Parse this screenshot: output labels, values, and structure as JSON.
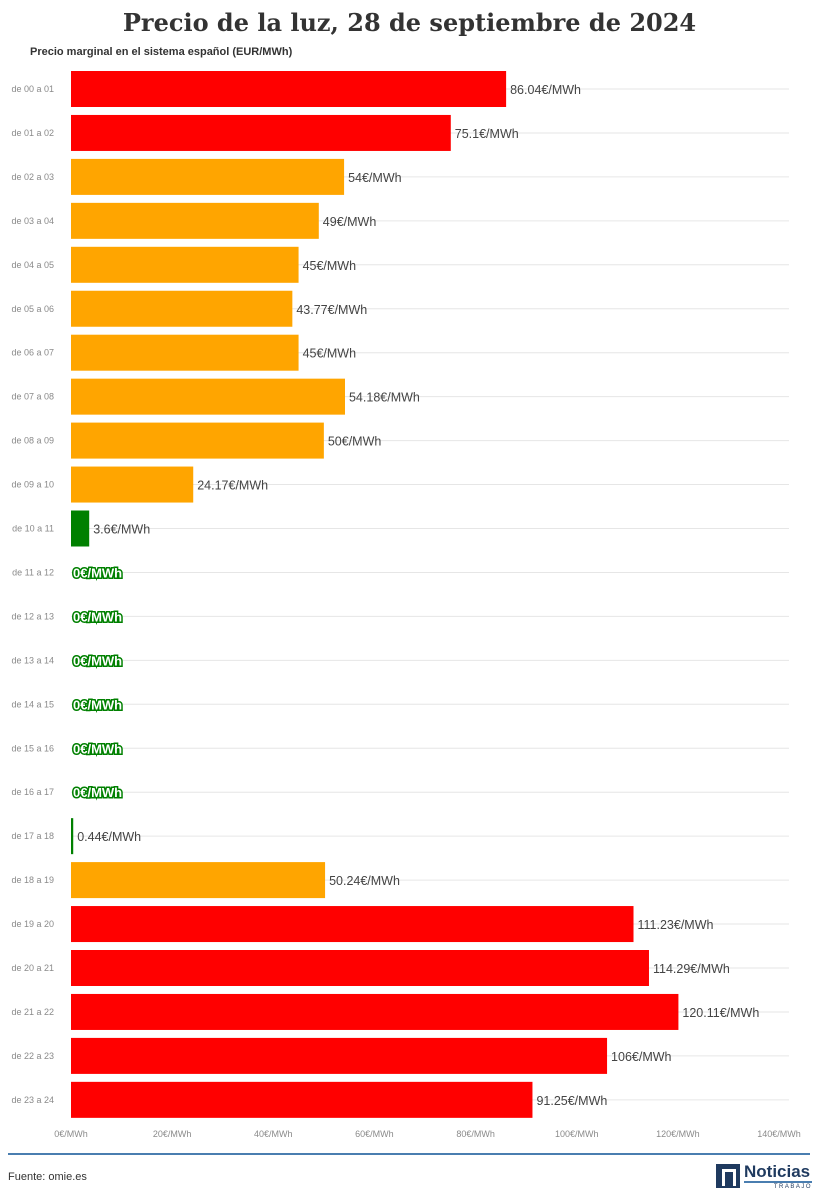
{
  "chart_data": {
    "type": "bar",
    "orientation": "horizontal",
    "title": "Precio de la luz, 28 de septiembre de 2024",
    "subtitle": "Precio marginal en el sistema español (EUR/MWh)",
    "categories": [
      "de 00 a 01",
      "de 01 a 02",
      "de 02 a 03",
      "de 03 a 04",
      "de 04 a 05",
      "de 05 a 06",
      "de 06 a 07",
      "de 07 a 08",
      "de 08 a 09",
      "de 09 a 10",
      "de 10 a 11",
      "de 11 a 12",
      "de 12 a 13",
      "de 13 a 14",
      "de 14 a 15",
      "de 15 a 16",
      "de 16 a 17",
      "de 17 a 18",
      "de 18 a 19",
      "de 19 a 20",
      "de 20 a 21",
      "de 21 a 22",
      "de 22 a 23",
      "de 23 a 24"
    ],
    "values": [
      86.04,
      75.1,
      54,
      49,
      45,
      43.77,
      45,
      54.18,
      50,
      24.17,
      3.6,
      0,
      0,
      0,
      0,
      0,
      0,
      0.44,
      50.24,
      111.23,
      114.29,
      120.11,
      106,
      91.25
    ],
    "value_labels": [
      "86.04€/MWh",
      "75.1€/MWh",
      "54€/MWh",
      "49€/MWh",
      "45€/MWh",
      "43.77€/MWh",
      "45€/MWh",
      "54.18€/MWh",
      "50€/MWh",
      "24.17€/MWh",
      "3.6€/MWh",
      "0€/MWh",
      "0€/MWh",
      "0€/MWh",
      "0€/MWh",
      "0€/MWh",
      "0€/MWh",
      "0.44€/MWh",
      "50.24€/MWh",
      "111.23€/MWh",
      "114.29€/MWh",
      "120.11€/MWh",
      "106€/MWh",
      "91.25€/MWh"
    ],
    "bar_colors": [
      "#ff0000",
      "#ff0000",
      "#ffa500",
      "#ffa500",
      "#ffa500",
      "#ffa500",
      "#ffa500",
      "#ffa500",
      "#ffa500",
      "#ffa500",
      "#008000",
      "#008000",
      "#008000",
      "#008000",
      "#008000",
      "#008000",
      "#008000",
      "#008000",
      "#ffa500",
      "#ff0000",
      "#ff0000",
      "#ff0000",
      "#ff0000",
      "#ff0000"
    ],
    "xlim": [
      0,
      140
    ],
    "x_ticks": [
      0,
      20,
      40,
      60,
      80,
      100,
      120,
      140
    ],
    "x_tick_labels": [
      "0€/MWh",
      "20€/MWh",
      "40€/MWh",
      "60€/MWh",
      "80€/MWh",
      "100€/MWh",
      "120€/MWh",
      "140€/MWh"
    ],
    "grid": true,
    "legend": "none"
  },
  "footer": {
    "source": "Fuente: omie.es",
    "logo_main": "Noticias",
    "logo_sub": "TRABAJO"
  },
  "colors": {
    "high": "#ff0000",
    "medium": "#ffa500",
    "low": "#008000",
    "accent_line": "#4a7eb0"
  }
}
